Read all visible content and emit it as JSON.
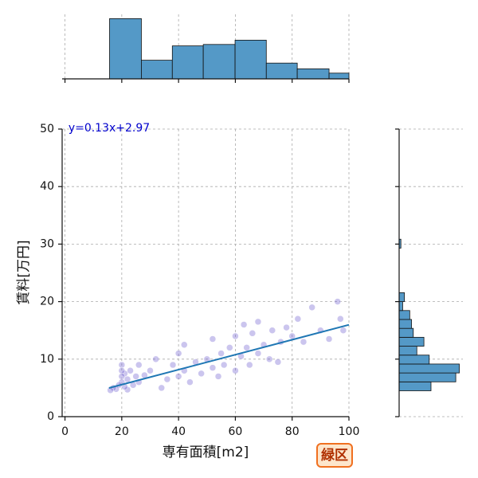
{
  "chart_data": [
    {
      "type": "scatter",
      "xlabel": "専有面積[m2]",
      "ylabel": "賃料[万円]",
      "annotation": "y=0.13x+2.97",
      "badge": "緑区",
      "xlim": [
        -1,
        100
      ],
      "ylim": [
        0,
        50
      ],
      "xticks": [
        0,
        20,
        40,
        60,
        80,
        100
      ],
      "yticks": [
        0,
        10,
        20,
        30,
        40,
        50
      ],
      "grid": true,
      "color": "#6a5acd",
      "line_color": "#1f77b4",
      "regression": {
        "slope": 0.13,
        "intercept": 2.97,
        "xlim": [
          15.5,
          100
        ]
      },
      "x": [
        16,
        17,
        18,
        19,
        20,
        20,
        20,
        20,
        21,
        21,
        22,
        22,
        23,
        24,
        25,
        26,
        26,
        28,
        30,
        32,
        34,
        36,
        38,
        40,
        40,
        42,
        42,
        44,
        46,
        48,
        50,
        52,
        52,
        54,
        55,
        56,
        58,
        60,
        60,
        62,
        63,
        64,
        65,
        66,
        68,
        68,
        70,
        72,
        73,
        75,
        76,
        78,
        80,
        82,
        84,
        87,
        90,
        93,
        96,
        97,
        98
      ],
      "values": [
        4.6,
        5,
        4.8,
        5.5,
        6,
        7,
        8,
        9,
        5.2,
        7.5,
        4.7,
        6.5,
        8,
        5.5,
        7,
        9,
        6,
        7.2,
        8,
        10,
        5,
        6.5,
        9,
        7,
        11,
        8,
        12.5,
        6,
        9.5,
        7.5,
        10,
        8.5,
        13.5,
        7,
        11,
        9,
        12,
        8,
        14,
        10.5,
        16,
        12,
        9,
        14.5,
        11,
        16.5,
        12.5,
        10,
        15,
        9.5,
        13,
        15.5,
        14,
        17,
        13,
        19,
        15,
        13.5,
        20,
        17,
        15
      ]
    },
    {
      "type": "histogram",
      "orientation": "vertical",
      "color": "#5499c7",
      "bins": [
        15.7,
        26.9,
        37.8,
        48.7,
        59.9,
        70.9,
        81.8,
        93.0,
        104.0
      ],
      "counts": [
        42,
        13,
        23,
        24,
        27,
        11,
        7,
        4
      ],
      "ylim": [
        0,
        45
      ]
    },
    {
      "type": "histogram",
      "orientation": "horizontal",
      "color": "#5499c7",
      "bins": [
        4.5,
        6.05,
        7.6,
        9.15,
        10.7,
        12.25,
        13.8,
        15.35,
        16.9,
        18.45,
        20.0,
        21.55,
        23.1,
        24.65,
        26.2,
        27.75,
        29.3,
        30.85
      ],
      "counts": [
        18,
        32,
        34,
        17,
        10,
        14,
        8,
        7,
        6,
        2,
        3,
        0,
        0,
        0,
        0,
        0,
        1
      ],
      "xlim": [
        0,
        36
      ]
    }
  ]
}
